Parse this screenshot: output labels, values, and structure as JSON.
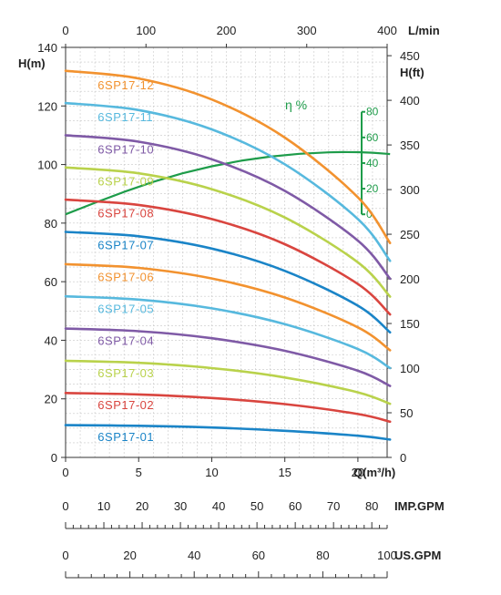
{
  "chart_data": {
    "type": "line",
    "x_axis": {
      "label": "Q(m³/h)",
      "range": [
        0,
        22
      ],
      "ticks": [
        0,
        5,
        10,
        15,
        20
      ],
      "tick_labels": [
        "0",
        "5",
        "10",
        "15",
        "20"
      ]
    },
    "y_axis_left": {
      "label": "H(m)",
      "range": [
        0,
        140
      ],
      "ticks": [
        0,
        20,
        40,
        60,
        80,
        100,
        120,
        140
      ],
      "tick_labels": [
        "0",
        "20",
        "40",
        "60",
        "80",
        "100",
        "120",
        "140"
      ]
    },
    "top_axis": {
      "label": "L/min",
      "range": [
        0,
        400
      ],
      "ticks": [
        0,
        100,
        200,
        300,
        400
      ],
      "tick_labels": [
        "0",
        "100",
        "200",
        "300",
        "400"
      ]
    },
    "y_axis_right": {
      "label": "H(ft)",
      "range": [
        0,
        459.3
      ],
      "ticks": [
        0,
        50,
        100,
        150,
        200,
        250,
        300,
        350,
        400,
        450
      ],
      "tick_labels": [
        "0",
        "50",
        "100",
        "150",
        "200",
        "250",
        "300",
        "350",
        "400",
        "450"
      ]
    },
    "efficiency_axis": {
      "label": "η %",
      "color": "#1e9c4a",
      "range": [
        0,
        80
      ],
      "ticks": [
        0,
        20,
        40,
        60,
        80
      ],
      "tick_labels": [
        "0",
        "20",
        "40",
        "60",
        "80"
      ]
    },
    "bottom_axes": [
      {
        "label": "IMP.GPM",
        "range": [
          0,
          84
        ],
        "ticks": [
          0,
          10,
          20,
          30,
          40,
          50,
          60,
          70,
          80
        ],
        "tick_labels": [
          "0",
          "10",
          "20",
          "30",
          "40",
          "50",
          "60",
          "70",
          "80"
        ]
      },
      {
        "label": "US.GPM",
        "range": [
          0,
          100
        ],
        "ticks": [
          0,
          20,
          40,
          60,
          80,
          100
        ],
        "tick_labels": [
          "0",
          "20",
          "40",
          "60",
          "80",
          "100"
        ]
      }
    ],
    "grid": true,
    "series": [
      {
        "name": "6SP17-01",
        "color": "#1a84c7",
        "x": [
          0,
          5,
          10,
          15,
          20,
          22.2
        ],
        "y": [
          11,
          10.8,
          10.2,
          9.1,
          7.4,
          6.1
        ]
      },
      {
        "name": "6SP17-02",
        "color": "#d9453f",
        "x": [
          0,
          5,
          10,
          15,
          20,
          22.2
        ],
        "y": [
          22,
          21.5,
          20.3,
          18.2,
          14.8,
          12.2
        ]
      },
      {
        "name": "6SP17-03",
        "color": "#b9d24b",
        "x": [
          0,
          5,
          10,
          15,
          20,
          22.2
        ],
        "y": [
          33,
          32.3,
          30.5,
          27.3,
          22.2,
          18.3
        ]
      },
      {
        "name": "6SP17-04",
        "color": "#7f5aa6",
        "x": [
          0,
          5,
          10,
          15,
          20,
          22.2
        ],
        "y": [
          44,
          43.1,
          40.7,
          36.4,
          29.6,
          24.4
        ]
      },
      {
        "name": "6SP17-05",
        "color": "#57b9de",
        "x": [
          0,
          5,
          10,
          15,
          20,
          22.2
        ],
        "y": [
          55,
          53.9,
          50.9,
          45.5,
          37,
          30.5
        ]
      },
      {
        "name": "6SP17-06",
        "color": "#f2922f",
        "x": [
          0,
          5,
          10,
          15,
          20,
          22.2
        ],
        "y": [
          66,
          64.7,
          61.1,
          54.6,
          44.4,
          36.6
        ]
      },
      {
        "name": "6SP17-07",
        "color": "#1a84c7",
        "x": [
          0,
          5,
          10,
          15,
          20,
          22.2
        ],
        "y": [
          77,
          75.5,
          71.3,
          63.7,
          51.8,
          42.7
        ]
      },
      {
        "name": "6SP17-08",
        "color": "#d9453f",
        "x": [
          0,
          5,
          10,
          15,
          20,
          22.2
        ],
        "y": [
          88,
          86.2,
          81.4,
          72.8,
          59.2,
          48.8
        ]
      },
      {
        "name": "6SP17-09",
        "color": "#b9d24b",
        "x": [
          0,
          5,
          10,
          15,
          20,
          22.2
        ],
        "y": [
          99,
          97,
          91.6,
          81.9,
          66.6,
          54.9
        ]
      },
      {
        "name": "6SP17-10",
        "color": "#7f5aa6",
        "x": [
          0,
          5,
          10,
          15,
          20,
          22.2
        ],
        "y": [
          110,
          107.8,
          101.8,
          91,
          74,
          61
        ]
      },
      {
        "name": "6SP17-11",
        "color": "#57b9de",
        "x": [
          0,
          5,
          10,
          15,
          20,
          22.2
        ],
        "y": [
          121,
          118.6,
          112,
          100.1,
          81.4,
          67.1
        ]
      },
      {
        "name": "6SP17-12",
        "color": "#f2922f",
        "x": [
          0,
          5,
          10,
          15,
          20,
          22.2
        ],
        "y": [
          132,
          129.4,
          122.2,
          109.2,
          88.8,
          73.2
        ]
      }
    ],
    "efficiency_curve": {
      "color": "#1e9c4a",
      "x": [
        0,
        2,
        4,
        6,
        8,
        10,
        12,
        14,
        16,
        18,
        19,
        20,
        21,
        22,
        22.2
      ],
      "y": [
        0,
        9,
        17.5,
        25.3,
        32,
        37.5,
        41.8,
        45,
        47.2,
        48.4,
        48.6,
        48.5,
        48.1,
        47.2,
        47
      ]
    },
    "label_positions_q": 2.0
  }
}
